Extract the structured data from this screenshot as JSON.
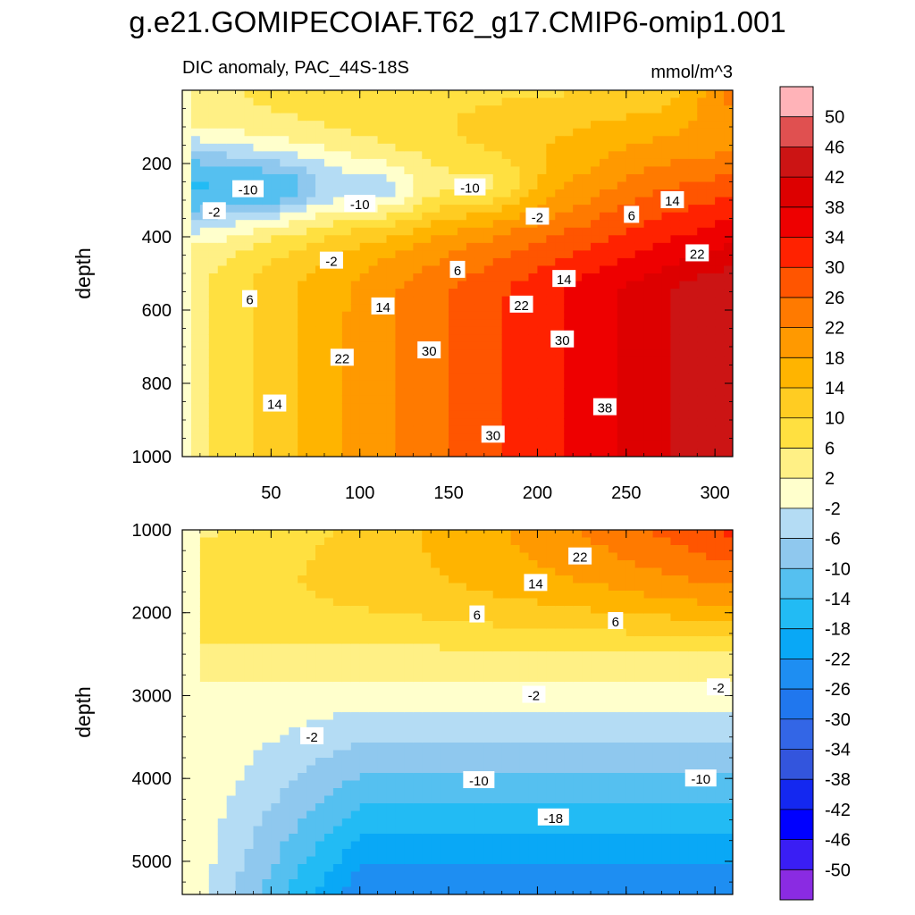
{
  "figure": {
    "title": "g.e21.GOMIPECOIAF.T62_g17.CMIP6-omip1.001",
    "subtitle_left": "DIC anomaly, PAC_44S-18S",
    "subtitle_right": "mmol/m^3"
  },
  "chart_data": [
    {
      "type": "heatmap",
      "name": "upper-panel",
      "ylabel": "depth",
      "xlim": [
        0,
        310
      ],
      "ylim": [
        1000,
        0
      ],
      "xticks": [
        50,
        100,
        150,
        200,
        250,
        300
      ],
      "xtick_labels": [
        "50",
        "100",
        "150",
        "200",
        "250",
        "300"
      ],
      "yticks": [
        200,
        400,
        600,
        800,
        1000
      ],
      "ytick_labels": [
        "200",
        "400",
        "600",
        "800",
        "1000"
      ],
      "description_values": "time (x) vs depth (y) contour of DIC anomaly",
      "contour_labels": [
        {
          "text": "-10",
          "x": 37,
          "y": 270
        },
        {
          "text": "-2",
          "x": 18,
          "y": 330
        },
        {
          "text": "-10",
          "x": 100,
          "y": 310
        },
        {
          "text": "-10",
          "x": 162,
          "y": 265
        },
        {
          "text": "-2",
          "x": 200,
          "y": 345
        },
        {
          "text": "6",
          "x": 253,
          "y": 340
        },
        {
          "text": "14",
          "x": 276,
          "y": 300
        },
        {
          "text": "-2",
          "x": 84,
          "y": 465
        },
        {
          "text": "6",
          "x": 155,
          "y": 490
        },
        {
          "text": "22",
          "x": 290,
          "y": 445
        },
        {
          "text": "14",
          "x": 215,
          "y": 515
        },
        {
          "text": "6",
          "x": 38,
          "y": 570
        },
        {
          "text": "14",
          "x": 113,
          "y": 590
        },
        {
          "text": "22",
          "x": 191,
          "y": 585
        },
        {
          "text": "30",
          "x": 214,
          "y": 680
        },
        {
          "text": "22",
          "x": 90,
          "y": 730
        },
        {
          "text": "30",
          "x": 139,
          "y": 710
        },
        {
          "text": "14",
          "x": 52,
          "y": 855
        },
        {
          "text": "38",
          "x": 238,
          "y": 865
        },
        {
          "text": "30",
          "x": 175,
          "y": 940
        }
      ]
    },
    {
      "type": "heatmap",
      "name": "lower-panel",
      "ylabel": "depth",
      "xlim": [
        0,
        310
      ],
      "ylim": [
        5400,
        1000
      ],
      "yticks": [
        1000,
        2000,
        3000,
        4000,
        5000
      ],
      "ytick_labels": [
        "1000",
        "2000",
        "3000",
        "4000",
        "5000"
      ],
      "contour_labels": [
        {
          "text": "22",
          "x": 224,
          "y": 1320
        },
        {
          "text": "14",
          "x": 199,
          "y": 1640
        },
        {
          "text": "6",
          "x": 166,
          "y": 2020
        },
        {
          "text": "6",
          "x": 244,
          "y": 2100
        },
        {
          "text": "-2",
          "x": 198,
          "y": 2990
        },
        {
          "text": "-2",
          "x": 302,
          "y": 2900
        },
        {
          "text": "-2",
          "x": 73,
          "y": 3490
        },
        {
          "text": "-10",
          "x": 167,
          "y": 4020
        },
        {
          "text": "-10",
          "x": 292,
          "y": 4000
        },
        {
          "text": "-18",
          "x": 209,
          "y": 4470
        }
      ]
    }
  ],
  "colorbar": {
    "labels": [
      "50",
      "46",
      "42",
      "38",
      "34",
      "30",
      "26",
      "22",
      "18",
      "14",
      "10",
      "6",
      "2",
      "-2",
      "-6",
      "-10",
      "-14",
      "-18",
      "-22",
      "-26",
      "-30",
      "-34",
      "-38",
      "-42",
      "-46",
      "-50"
    ],
    "colors": [
      "#FFB3B8",
      "#E05050",
      "#CC1414",
      "#DD0000",
      "#EE0000",
      "#FF2200",
      "#FF5500",
      "#FF7A00",
      "#FF9900",
      "#FFB400",
      "#FFCC22",
      "#FFE040",
      "#FFF085",
      "#FFFFCC",
      "#B4DCF4",
      "#8FC8EE",
      "#55C0F0",
      "#22BBF4",
      "#09A8F6",
      "#1E8EF2",
      "#2077EE",
      "#3366E6",
      "#3355DD",
      "#1428F0",
      "#0000FF",
      "#3A1EF4",
      "#8A2BE2"
    ]
  }
}
